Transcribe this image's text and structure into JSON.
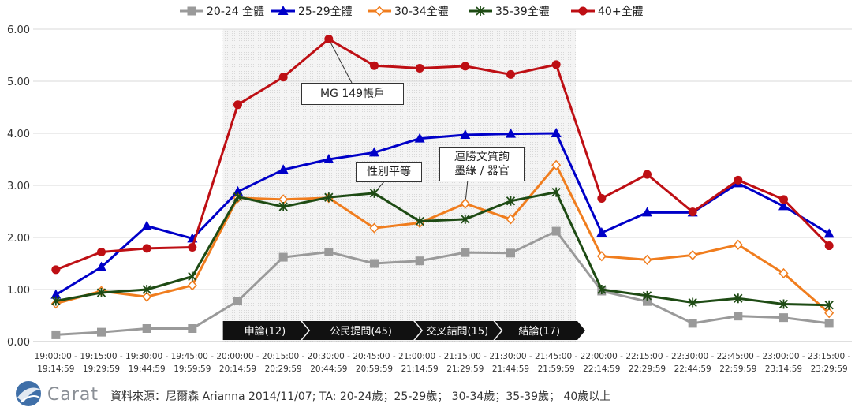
{
  "chart_data": {
    "type": "line",
    "categories": [
      [
        "19:00:00 -",
        "19:14:59"
      ],
      [
        "19:15:00 -",
        "19:29:59"
      ],
      [
        "19:30:00 -",
        "19:44:59"
      ],
      [
        "19:45:00 -",
        "19:59:59"
      ],
      [
        "20:00:00 -",
        "20:14:59"
      ],
      [
        "20:15:00 -",
        "20:29:59"
      ],
      [
        "20:30:00 -",
        "20:44:59"
      ],
      [
        "20:45:00 -",
        "20:59:59"
      ],
      [
        "21:00:00 -",
        "21:14:59"
      ],
      [
        "21:15:00 -",
        "21:29:59"
      ],
      [
        "21:30:00 -",
        "21:44:59"
      ],
      [
        "21:45:00 -",
        "21:59:59"
      ],
      [
        "22:00:00 -",
        "22:14:59"
      ],
      [
        "22:15:00 -",
        "22:29:59"
      ],
      [
        "22:30:00 -",
        "22:44:59"
      ],
      [
        "22:45:00 -",
        "22:59:59"
      ],
      [
        "23:00:00 -",
        "23:14:59"
      ],
      [
        "23:15:00 -",
        "23:29:59"
      ]
    ],
    "ylim": [
      0,
      6
    ],
    "yticks": [
      "0.00",
      "1.00",
      "2.00",
      "3.00",
      "4.00",
      "5.00",
      "6.00"
    ],
    "grid": true,
    "legend_position": "top",
    "series": [
      {
        "name": "20-24 全體",
        "color": "#9a9a9a",
        "marker": "square",
        "values": [
          0.13,
          0.18,
          0.25,
          0.25,
          0.78,
          1.62,
          1.72,
          1.5,
          1.55,
          1.71,
          1.7,
          2.12,
          0.97,
          0.77,
          0.35,
          0.49,
          0.46,
          0.35
        ]
      },
      {
        "name": "25-29全體",
        "color": "#0000c8",
        "marker": "triangle",
        "values": [
          0.9,
          1.43,
          2.22,
          1.98,
          2.88,
          3.3,
          3.5,
          3.63,
          3.9,
          3.97,
          3.99,
          4.0,
          2.09,
          2.48,
          2.48,
          3.04,
          2.6,
          2.07
        ]
      },
      {
        "name": "30-34全體",
        "color": "#f07d1e",
        "marker": "diamond",
        "values": [
          0.73,
          0.97,
          0.86,
          1.08,
          2.76,
          2.73,
          2.76,
          2.18,
          2.28,
          2.65,
          2.35,
          3.39,
          1.64,
          1.57,
          1.66,
          1.86,
          1.31,
          0.55
        ]
      },
      {
        "name": "35-39全體",
        "color": "#1e4b14",
        "marker": "star",
        "values": [
          0.78,
          0.94,
          1.0,
          1.25,
          2.78,
          2.59,
          2.77,
          2.85,
          2.31,
          2.35,
          2.7,
          2.87,
          1.0,
          0.88,
          0.75,
          0.83,
          0.72,
          0.7
        ]
      },
      {
        "name": "40+全體",
        "color": "#be0f14",
        "marker": "circle",
        "values": [
          1.38,
          1.72,
          1.79,
          1.81,
          4.55,
          5.08,
          5.81,
          5.3,
          5.25,
          5.29,
          5.13,
          5.32,
          2.75,
          3.21,
          2.49,
          3.1,
          2.73,
          1.84
        ]
      }
    ],
    "shaded_period": {
      "from_index": 4,
      "to_index": 11
    },
    "segments": [
      {
        "label": "申論(12)"
      },
      {
        "label": "公民提問(45)"
      },
      {
        "label": "交叉詰問(15)"
      },
      {
        "label": "結論(17)"
      }
    ],
    "annotations": [
      {
        "text": "MG 149帳戶",
        "point_series": 4,
        "point_index": 6
      },
      {
        "text": "性別平等",
        "point_series": 3,
        "point_index": 7
      },
      {
        "text": "連勝文質詢\n墨綠 / 器官",
        "point_series": 2,
        "point_index": 9
      }
    ]
  },
  "footer": {
    "logo_text": "Carat",
    "source": "資料來源：尼爾森 Arianna 2014/11/07; TA: 20-24歲；25-29歲； 30-34歲；35-39歲； 40歲以上"
  }
}
